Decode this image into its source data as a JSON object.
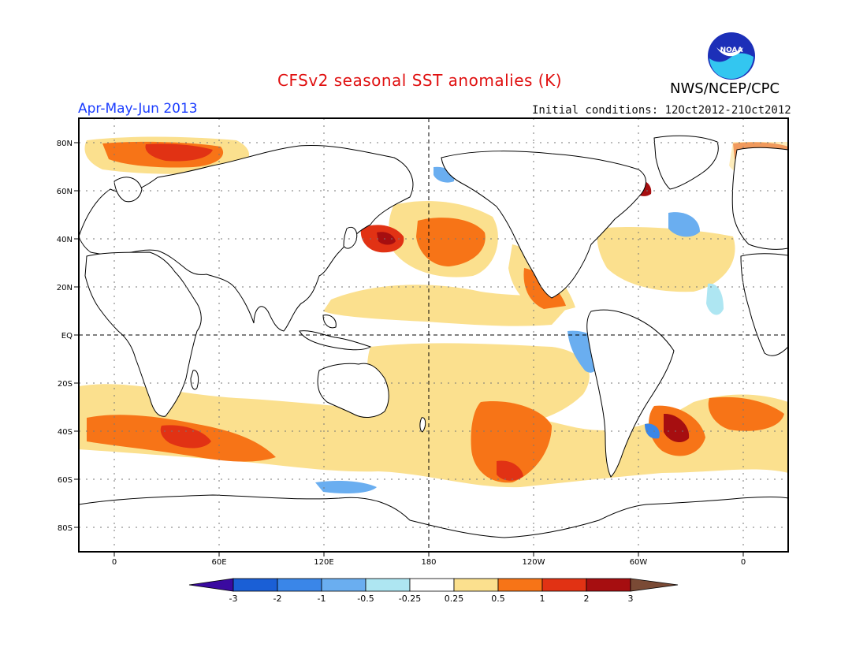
{
  "header": {
    "title": "CFSv2 seasonal SST anomalies (K)",
    "agency": "NWS/NCEP/CPC",
    "season": "Apr-May-Jun 2013",
    "initial_conditions": "Initial conditions: 12Oct2012-21Oct2012",
    "logo_text": "NOAA"
  },
  "map": {
    "lat_labels": [
      "80N",
      "60N",
      "40N",
      "20N",
      "EQ",
      "20S",
      "40S",
      "60S",
      "80S"
    ],
    "lon_labels": [
      "0",
      "60E",
      "120E",
      "180",
      "120W",
      "60W",
      "0"
    ]
  },
  "colorbar": {
    "tick_labels": [
      "-3",
      "-2",
      "-1",
      "-0.5",
      "-0.25",
      "0.25",
      "0.5",
      "1",
      "2",
      "3"
    ],
    "colors": [
      "#3a0aa0",
      "#1a5fd6",
      "#3a86e8",
      "#6aaef0",
      "#aee6f2",
      "#ffffff",
      "#fbe08e",
      "#f77417",
      "#e13214",
      "#a60e10",
      "#7a4a35"
    ]
  },
  "colors": {
    "title": "#e01010",
    "season": "#1a3cff",
    "land_outline": "#000000"
  }
}
